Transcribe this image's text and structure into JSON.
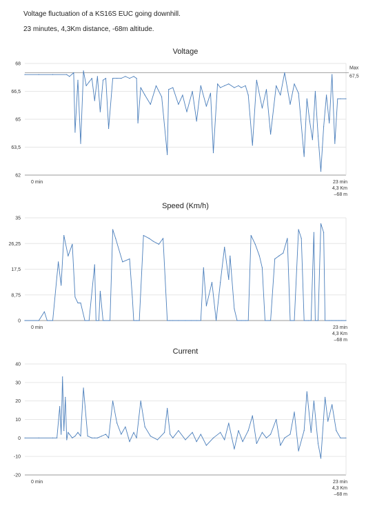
{
  "header": {
    "line1": "Voltage fluctuation of a KS16S EUC going downhill.",
    "line2": "23 minutes, 4,3Km distance, -68m altitude."
  },
  "colors": {
    "series": "#4a7ebb",
    "grid": "#e6e6e6",
    "axis": "#999999",
    "maxline": "#888888"
  },
  "chart_data": [
    {
      "type": "line",
      "title": "Voltage",
      "ylim": [
        62,
        68
      ],
      "yticks": [
        62,
        63.5,
        65,
        66.5,
        68
      ],
      "ytick_labels": [
        "62",
        "63,5",
        "65",
        "66,5",
        "68"
      ],
      "xlim": [
        0,
        23
      ],
      "x_start_label": "0 min",
      "x_end_label": [
        "23 min",
        "4,3 Km",
        "–68 m"
      ],
      "annotation": {
        "label": [
          "Max",
          "67,5"
        ],
        "value": 67.5
      },
      "series": [
        {
          "x": [
            0,
            1,
            2,
            3,
            3.2,
            3.5,
            3.6,
            3.8,
            4,
            4.2,
            4.4,
            4.6,
            4.8,
            5,
            5.2,
            5.4,
            5.6,
            5.8,
            6,
            6.3,
            6.6,
            6.9,
            7.2,
            7.5,
            7.8,
            8,
            8.1,
            8.3,
            8.6,
            9,
            9.4,
            9.8,
            10.2,
            10.3,
            10.6,
            11,
            11.3,
            11.6,
            12,
            12.3,
            12.6,
            13,
            13.3,
            13.5,
            13.8,
            14,
            14.3,
            14.6,
            15,
            15.3,
            15.5,
            15.8,
            16,
            16.3,
            16.6,
            17,
            17.3,
            17.6,
            18,
            18.3,
            18.6,
            19,
            19.3,
            19.6,
            20,
            20.2,
            20.4,
            20.6,
            20.8,
            21,
            21.2,
            21.4,
            21.6,
            21.8,
            22,
            22.2,
            22.4,
            22.6,
            23
          ],
          "values": [
            67.4,
            67.4,
            67.4,
            67.4,
            67.3,
            67.5,
            64.3,
            67.1,
            63.7,
            67.6,
            66.8,
            67.0,
            67.2,
            66.0,
            67.3,
            65.4,
            67.1,
            67.2,
            64.5,
            67.2,
            67.2,
            67.2,
            67.3,
            67.2,
            67.3,
            67.2,
            64.8,
            66.7,
            66.3,
            65.8,
            66.8,
            66.2,
            63.1,
            66.6,
            66.7,
            65.8,
            66.3,
            65.4,
            66.5,
            64.9,
            66.8,
            65.7,
            66.4,
            63.2,
            66.9,
            66.7,
            66.8,
            66.9,
            66.7,
            66.8,
            66.7,
            66.8,
            66.3,
            63.6,
            67.1,
            65.6,
            66.6,
            64.2,
            66.8,
            66.3,
            67.5,
            65.8,
            66.9,
            66.4,
            63.0,
            66.1,
            64.9,
            63.9,
            66.5,
            64.1,
            62.2,
            64.6,
            66.3,
            64.8,
            67.4,
            63.7,
            66.1,
            66.1,
            66.1
          ]
        }
      ]
    },
    {
      "type": "line",
      "title": "Speed (Km/h)",
      "ylim": [
        0,
        35
      ],
      "yticks": [
        0,
        8.75,
        17.5,
        26.25,
        35
      ],
      "ytick_labels": [
        "0",
        "8,75",
        "17,5",
        "26,25",
        "35"
      ],
      "xlim": [
        0,
        23
      ],
      "x_start_label": "0 min",
      "x_end_label": [
        "23 min",
        "4,3 Km",
        "–68 m"
      ],
      "series": [
        {
          "x": [
            0,
            1,
            1.4,
            1.6,
            2,
            2.4,
            2.6,
            2.8,
            3.1,
            3.4,
            3.6,
            3.8,
            4.0,
            4.3,
            4.6,
            5.0,
            5.1,
            5.3,
            5.4,
            5.6,
            5.7,
            6.0,
            6.1,
            6.3,
            6.5,
            7.0,
            7.5,
            7.7,
            7.8,
            8.0,
            8.2,
            8.5,
            8.9,
            9.2,
            9.6,
            9.9,
            10.2,
            10.4,
            10.6,
            11,
            11.5,
            11.9,
            12.3,
            12.6,
            12.8,
            13.0,
            13.4,
            13.7,
            14.0,
            14.3,
            14.6,
            14.7,
            15.0,
            15.2,
            15.5,
            15.8,
            16.0,
            16.2,
            16.5,
            16.8,
            17.0,
            17.2,
            17.5,
            17.6,
            17.9,
            18.2,
            18.5,
            18.8,
            19.0,
            19.3,
            19.6,
            19.8,
            20.0,
            20.3,
            20.5,
            20.7,
            20.8,
            21.0,
            21.2,
            21.4,
            21.5,
            21.8,
            22.0,
            22.3,
            22.5,
            22.7,
            23
          ],
          "values": [
            0,
            0,
            3,
            0,
            0,
            20,
            12,
            29,
            22,
            26,
            8,
            6,
            6,
            0,
            0,
            19,
            0,
            0,
            10,
            0,
            0,
            0,
            0,
            31,
            28,
            20,
            21,
            8,
            0,
            0,
            0,
            29,
            28,
            27,
            26,
            28,
            0,
            0,
            0,
            0,
            0,
            0,
            0,
            0,
            18,
            5,
            13,
            0,
            13,
            25,
            14,
            22,
            4,
            0,
            0,
            0,
            0,
            29,
            26,
            22,
            18,
            0,
            0,
            0,
            21,
            22,
            23,
            28,
            0,
            0,
            31,
            28,
            0,
            0,
            0,
            30,
            0,
            0,
            33,
            30,
            0,
            0,
            0,
            0,
            0,
            0,
            0
          ]
        }
      ]
    },
    {
      "type": "line",
      "title": "Current",
      "ylim": [
        -20,
        40
      ],
      "yticks": [
        -20,
        -10,
        0,
        10,
        20,
        30,
        40
      ],
      "ytick_labels": [
        "-20",
        "-10",
        "0",
        "10",
        "20",
        "30",
        "40"
      ],
      "xlim": [
        0,
        23
      ],
      "x_start_label": "0 min",
      "x_end_label": [
        "23 min",
        "4,3 Km",
        "–68 m"
      ],
      "series": [
        {
          "x": [
            0,
            1,
            2,
            2.3,
            2.5,
            2.6,
            2.7,
            2.8,
            2.9,
            3.0,
            3.1,
            3.2,
            3.4,
            3.6,
            3.8,
            4.0,
            4.2,
            4.5,
            4.8,
            5.0,
            5.2,
            5.5,
            5.8,
            6.0,
            6.3,
            6.6,
            6.9,
            7.2,
            7.5,
            7.8,
            8.0,
            8.3,
            8.6,
            9,
            9.5,
            10,
            10.2,
            10.4,
            10.6,
            11,
            11.5,
            12,
            12.3,
            12.6,
            13,
            13.5,
            14,
            14.3,
            14.6,
            15,
            15.3,
            15.6,
            16,
            16.3,
            16.6,
            17,
            17.3,
            17.6,
            18,
            18.3,
            18.6,
            19,
            19.3,
            19.6,
            20,
            20.2,
            20.5,
            20.7,
            21,
            21.2,
            21.5,
            21.7,
            22,
            22.3,
            22.6,
            23
          ],
          "values": [
            0,
            0,
            0,
            0,
            17,
            2,
            33,
            4,
            22,
            -1,
            3,
            2,
            0,
            1,
            3,
            1,
            27,
            1,
            0,
            0,
            0,
            1,
            2,
            0,
            20,
            8,
            2,
            6,
            -2,
            3,
            0,
            20,
            6,
            1,
            -1,
            3,
            16,
            2,
            0,
            4,
            -1,
            3,
            -2,
            2,
            -4,
            0,
            3,
            -1,
            8,
            -6,
            4,
            -2,
            4,
            12,
            -3,
            3,
            0,
            2,
            10,
            -4,
            0,
            2,
            14,
            -7,
            4,
            25,
            3,
            20,
            -3,
            -11,
            22,
            9,
            18,
            4,
            0,
            0
          ]
        }
      ]
    }
  ]
}
